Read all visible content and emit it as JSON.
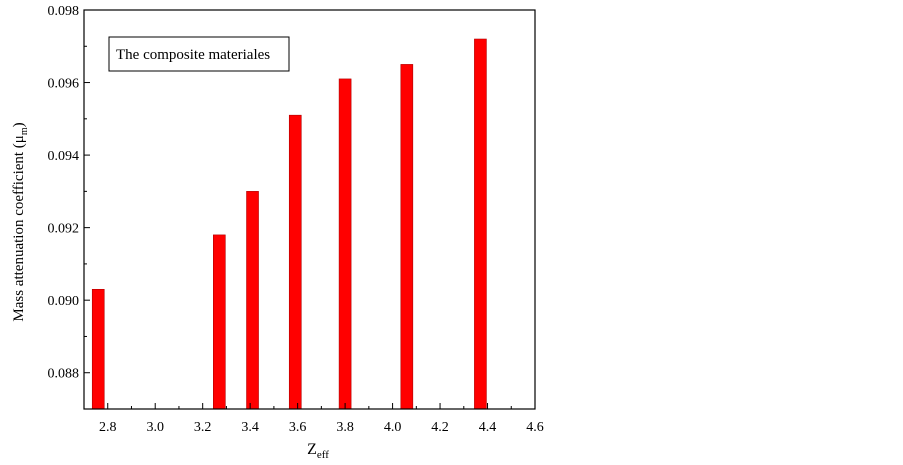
{
  "chart_data": {
    "type": "bar",
    "x": [
      2.76,
      3.27,
      3.41,
      3.59,
      3.8,
      4.06,
      4.37
    ],
    "values": [
      0.0903,
      0.0918,
      0.093,
      0.0951,
      0.0961,
      0.0965,
      0.0972
    ],
    "xlim": [
      2.7,
      4.6
    ],
    "ylim": [
      0.087,
      0.098
    ],
    "xticks": [
      2.8,
      3.0,
      3.2,
      3.4,
      3.6,
      3.8,
      4.0,
      4.2,
      4.4,
      4.6
    ],
    "xtick_labels": [
      "2.8",
      "3.0",
      "3.2",
      "3.4",
      "3.6",
      "3.8",
      "4.0",
      "4.2",
      "4.4",
      "4.6"
    ],
    "yticks": [
      0.088,
      0.09,
      0.092,
      0.094,
      0.096,
      0.098
    ],
    "ytick_labels": [
      "0.088",
      "0.090",
      "0.092",
      "0.094",
      "0.096",
      "0.098"
    ],
    "xlabel": "Z",
    "xlabel_sub": "eff",
    "ylabel": "Mass attenuation coefficient (μ",
    "ylabel_sub": "m",
    "ylabel_end": ")",
    "legend_text": "The composite materiales",
    "legend_position": "top-left",
    "grid": false,
    "bar_color": "#ff0000",
    "bar_edge_color": "#b00000"
  }
}
